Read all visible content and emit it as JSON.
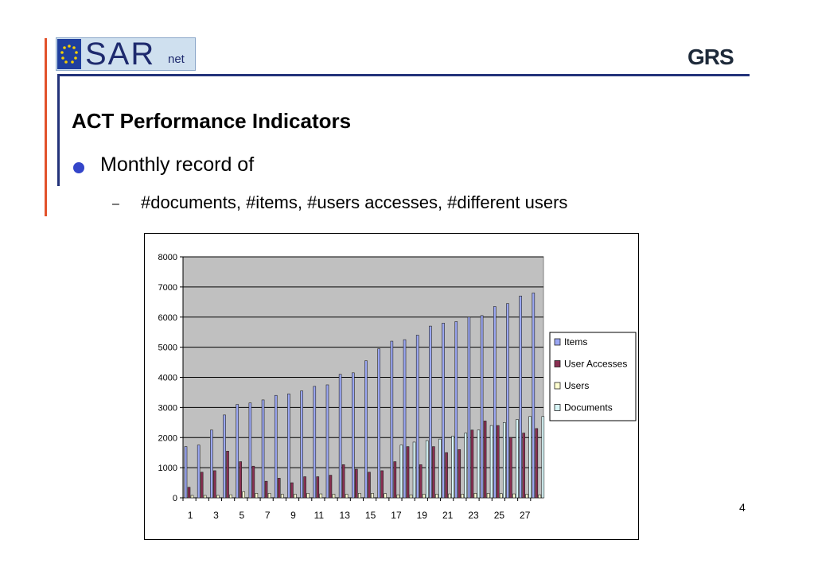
{
  "header": {
    "logo_left_text": "SAR",
    "logo_left_sub": "net",
    "logo_right_text": "GRS"
  },
  "slide": {
    "title": "ACT Performance Indicators",
    "bullet_1": "Monthly record of",
    "sub_bullet_dash": "–",
    "sub_bullet_1": "#documents, #items, #users accesses, #different users",
    "page_number": "4"
  },
  "colors": {
    "items": "#9aa6f2",
    "user_accesses": "#8a2f52",
    "users": "#ffffd0",
    "documents": "#d8f6f8",
    "plot_bg": "#c0c0c0"
  },
  "chart_data": {
    "type": "bar",
    "title": "",
    "xlabel": "",
    "ylabel": "",
    "ylim": [
      0,
      8000
    ],
    "yticks": [
      0,
      1000,
      2000,
      3000,
      4000,
      5000,
      6000,
      7000,
      8000
    ],
    "xtick_labels": [
      "1",
      "3",
      "5",
      "7",
      "9",
      "11",
      "13",
      "15",
      "17",
      "19",
      "21",
      "23",
      "25",
      "27"
    ],
    "categories": [
      1,
      2,
      3,
      4,
      5,
      6,
      7,
      8,
      9,
      10,
      11,
      12,
      13,
      14,
      15,
      16,
      17,
      18,
      19,
      20,
      21,
      22,
      23,
      24,
      25,
      26,
      27,
      28
    ],
    "legend_position": "right",
    "grid": true,
    "series": [
      {
        "name": "Items",
        "values": [
          1700,
          1750,
          2250,
          2750,
          3100,
          3150,
          3250,
          3400,
          3450,
          3550,
          3700,
          3750,
          4100,
          4150,
          4550,
          4950,
          5200,
          5250,
          5400,
          5700,
          5800,
          5850,
          6000,
          6050,
          6350,
          6450,
          6700,
          6800
        ]
      },
      {
        "name": "User Accesses",
        "values": [
          350,
          850,
          900,
          1550,
          1200,
          1050,
          550,
          650,
          500,
          700,
          700,
          750,
          1100,
          950,
          850,
          900,
          1200,
          1700,
          1100,
          1700,
          1500,
          1600,
          2250,
          2550,
          2400,
          2000,
          2150,
          2300
        ]
      },
      {
        "name": "Users",
        "values": [
          80,
          80,
          80,
          100,
          200,
          150,
          150,
          120,
          120,
          150,
          130,
          120,
          120,
          150,
          150,
          140,
          100,
          100,
          120,
          120,
          130,
          120,
          150,
          150,
          140,
          130,
          120,
          100
        ]
      },
      {
        "name": "Documents",
        "values": [
          0,
          0,
          0,
          0,
          0,
          0,
          0,
          0,
          0,
          0,
          0,
          0,
          0,
          0,
          0,
          0,
          1750,
          1850,
          1900,
          1950,
          2050,
          2150,
          2250,
          2400,
          2500,
          2600,
          2700,
          2700
        ]
      }
    ]
  }
}
